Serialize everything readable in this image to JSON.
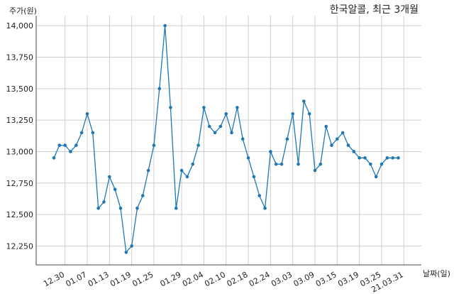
{
  "chart_data": {
    "type": "line",
    "title": "한국알콜, 최근 3개월",
    "xlabel": "날짜(일)",
    "ylabel": "주가(원)",
    "ylim": [
      12100,
      14080
    ],
    "yticks": [
      "12,250",
      "12,500",
      "12,750",
      "13,000",
      "13,250",
      "13,500",
      "13,750",
      "14,000"
    ],
    "ytick_values": [
      12250,
      12500,
      12750,
      13000,
      13250,
      13500,
      13750,
      14000
    ],
    "xtick_labels": [
      "12.30",
      "01.07",
      "01.13",
      "01.19",
      "01.25",
      "01.29",
      "02.04",
      "02.10",
      "02.18",
      "02.24",
      "03.03",
      "03.09",
      "03.15",
      "03.19",
      "03.25",
      "21.03.31"
    ],
    "xtick_index": [
      2,
      6,
      10,
      14,
      18,
      23,
      27,
      31,
      35,
      39,
      43,
      47,
      51,
      55,
      59,
      63
    ],
    "grid": true,
    "color": "#1f77b4",
    "series": [
      {
        "values": [
          12950,
          13050,
          13050,
          13000,
          13050,
          13150,
          13300,
          13150,
          12550,
          12600,
          12800,
          12700,
          12550,
          12200,
          12250,
          12550,
          12650,
          12850,
          13050,
          13500,
          14000,
          13350,
          12550,
          12850,
          12800,
          12900,
          13050,
          13350,
          13200,
          13150,
          13200,
          13300,
          13150,
          13350,
          13100,
          12950,
          12800,
          12650,
          12550,
          13000,
          12900,
          12900,
          13100,
          13300,
          12900,
          13400,
          13300,
          12850,
          12900,
          13200,
          13050,
          13100,
          13150,
          13050,
          13000,
          12950,
          12950,
          12900,
          12800,
          12900,
          12950,
          12950,
          12950
        ]
      }
    ]
  }
}
